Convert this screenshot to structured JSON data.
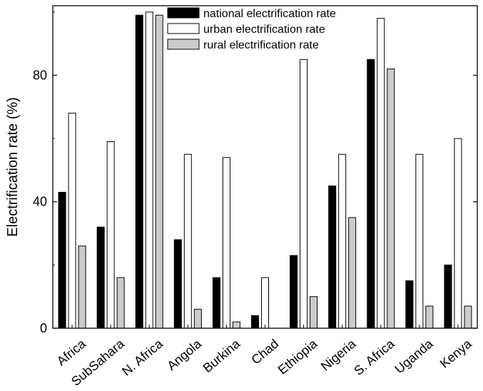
{
  "chart_data": {
    "type": "bar",
    "title": "",
    "xlabel": "",
    "ylabel": "Electrification rate (%)",
    "ylim": [
      0,
      102
    ],
    "yticks": [
      0,
      40,
      80
    ],
    "grid": false,
    "legend_position": "top-center",
    "categories": [
      "Africa",
      "SubSahara",
      "N. Africa",
      "Angola",
      "Burkina",
      "Chad",
      "Ethiopia",
      "Nigeria",
      "S. Africa",
      "Uganda",
      "Kenya"
    ],
    "series": [
      {
        "name": "national electrification rate",
        "color": "#000000",
        "values": [
          43,
          32,
          99,
          28,
          16,
          4,
          23,
          45,
          85,
          15,
          20
        ]
      },
      {
        "name": "urban electrification rate",
        "color": "#ffffff",
        "values": [
          68,
          59,
          100,
          55,
          54,
          16,
          85,
          55,
          98,
          55,
          60
        ]
      },
      {
        "name": "rural electrification rate",
        "color": "#cccccc",
        "values": [
          26,
          16,
          99,
          6,
          2,
          0,
          10,
          35,
          82,
          7,
          7
        ]
      }
    ]
  }
}
